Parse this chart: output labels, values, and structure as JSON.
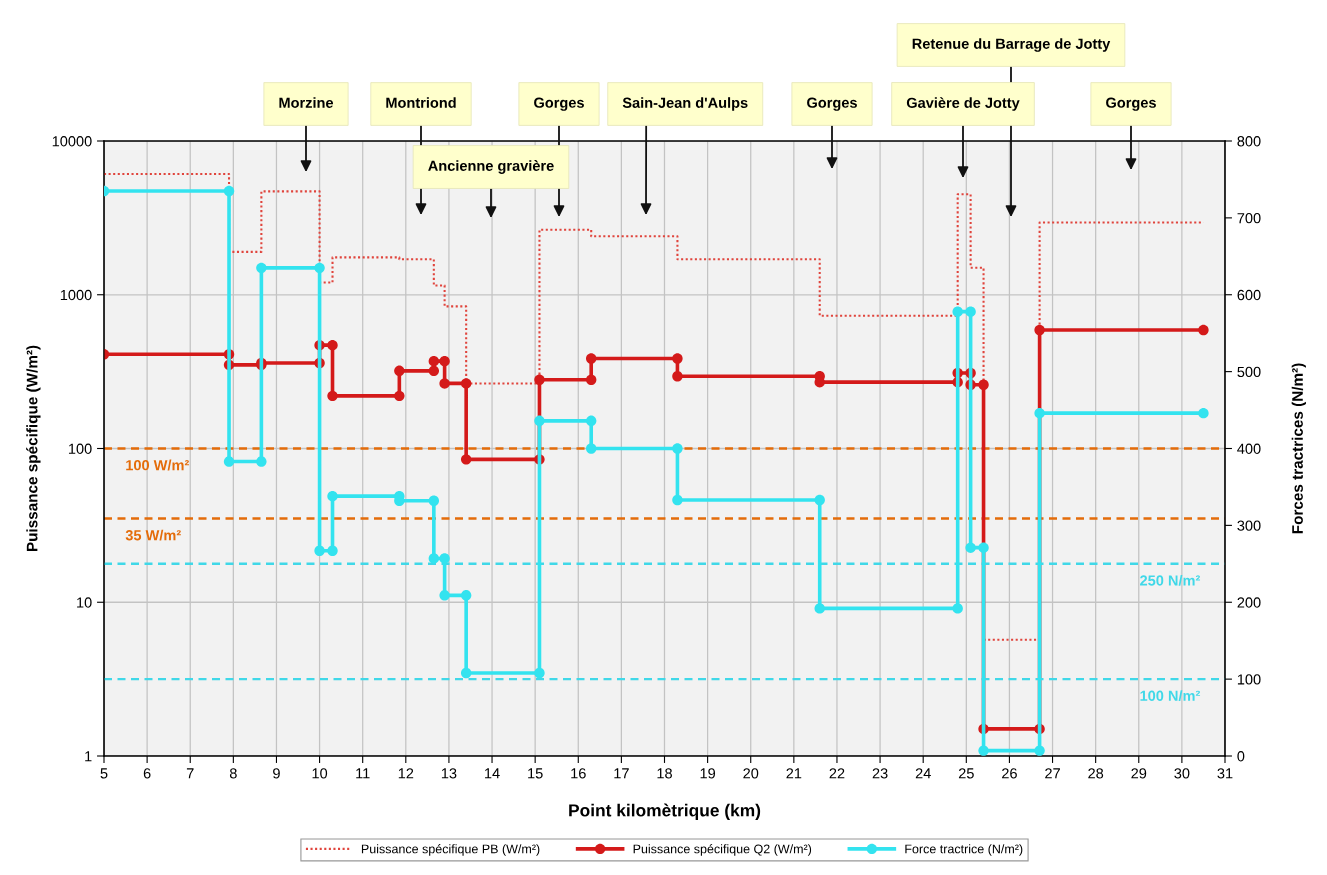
{
  "chart_data": {
    "type": "line",
    "xlabel": "Point kilomètrique (km)",
    "ylabel": "Puissance spécifique (W/m²)",
    "y2label": "Forces tractrices (N/m²)",
    "xlim": [
      5,
      31
    ],
    "xticks": [
      5,
      6,
      7,
      8,
      9,
      10,
      11,
      12,
      13,
      14,
      15,
      16,
      17,
      18,
      19,
      20,
      21,
      22,
      23,
      24,
      25,
      26,
      27,
      28,
      29,
      30,
      31
    ],
    "log": "y",
    "ylim": [
      1,
      10000
    ],
    "yticks": [
      1,
      10,
      100,
      1000,
      10000
    ],
    "y2lim": [
      0,
      800
    ],
    "y2ticks": [
      0,
      100,
      200,
      300,
      400,
      500,
      600,
      700,
      800
    ],
    "grid": true,
    "legend": "bottom",
    "series": [
      {
        "name": "Puissance spécifique PB (W/m²)",
        "color": "#e0443c",
        "line_style": "dotted",
        "marker": "none",
        "x": [
          5,
          7.9,
          7.9,
          8.65,
          8.65,
          10,
          10,
          10.3,
          10.3,
          11.85,
          11.85,
          12.65,
          12.65,
          12.9,
          12.9,
          13.4,
          13.4,
          15.1,
          15.1,
          16.3,
          16.3,
          18.3,
          18.3,
          21.6,
          21.6,
          24.8,
          24.8,
          25.1,
          25.1,
          25.4,
          25.4,
          26.7,
          26.7,
          30.5
        ],
        "values": [
          6100,
          6100,
          1900,
          1900,
          4700,
          4700,
          1200,
          1200,
          1750,
          1750,
          1700,
          1700,
          1150,
          1150,
          840,
          840,
          265,
          265,
          2650,
          2650,
          2400,
          2400,
          1700,
          1700,
          730,
          730,
          4500,
          4500,
          1500,
          1500,
          5.7,
          5.7,
          2950,
          2950
        ]
      },
      {
        "name": "Puissance spécifique Q2 (W/m²)",
        "color": "#d41a1a",
        "line_style": "solid",
        "marker": "circle",
        "x": [
          5,
          7.9,
          7.9,
          8.65,
          8.65,
          10,
          10,
          10.3,
          10.3,
          11.85,
          11.85,
          12.65,
          12.65,
          12.9,
          12.9,
          13.4,
          13.4,
          15.1,
          15.1,
          16.3,
          16.3,
          18.3,
          18.3,
          21.6,
          21.6,
          24.8,
          24.8,
          25.1,
          25.1,
          25.4,
          25.4,
          26.7,
          26.7,
          30.5
        ],
        "values": [
          410,
          410,
          350,
          350,
          360,
          360,
          470,
          470,
          220,
          220,
          320,
          320,
          370,
          370,
          265,
          265,
          85,
          85,
          280,
          280,
          385,
          385,
          295,
          295,
          270,
          270,
          310,
          310,
          260,
          260,
          1.5,
          1.5,
          590,
          590
        ]
      },
      {
        "name": "Force tractrice (N/m²)",
        "color": "#33e3ef",
        "line_style": "solid",
        "marker": "circle",
        "axis": "y2",
        "x": [
          5,
          7.9,
          7.9,
          8.65,
          8.65,
          10,
          10,
          10.3,
          10.3,
          11.85,
          11.85,
          12.65,
          12.65,
          12.9,
          12.9,
          13.4,
          13.4,
          15.1,
          15.1,
          16.3,
          16.3,
          18.3,
          18.3,
          21.6,
          21.6,
          24.8,
          24.8,
          25.1,
          25.1,
          25.4,
          25.4,
          26.7,
          26.7,
          30.5
        ],
        "values": [
          735,
          735,
          383,
          383,
          635,
          635,
          267,
          267,
          338,
          338,
          332,
          332,
          257,
          257,
          209,
          209,
          108,
          108,
          436,
          436,
          400,
          400,
          333,
          333,
          192,
          192,
          578,
          578,
          271,
          271,
          7,
          7,
          446,
          446
        ]
      }
    ],
    "ref_lines": [
      {
        "axis": "y",
        "value": 100,
        "label": "100 W/m²",
        "color": "#e46c0a",
        "line_style": "dashed"
      },
      {
        "axis": "y",
        "value": 35,
        "label": "35 W/m²",
        "color": "#e46c0a",
        "line_style": "dashed"
      },
      {
        "axis": "y2",
        "value": 250,
        "label": "250 N/m²",
        "color": "#40d8e8",
        "line_style": "dashed"
      },
      {
        "axis": "y2",
        "value": 100,
        "label": "100 N/m²",
        "color": "#40d8e8",
        "line_style": "dashed"
      }
    ],
    "annotations": [
      "Morzine",
      "Montriond",
      "Ancienne gravière",
      "Gorges",
      "Sain-Jean d'Aulps",
      "Gorges",
      "Gavière de Jotty",
      "Retenue du Barrage de Jotty",
      "Gorges"
    ]
  }
}
